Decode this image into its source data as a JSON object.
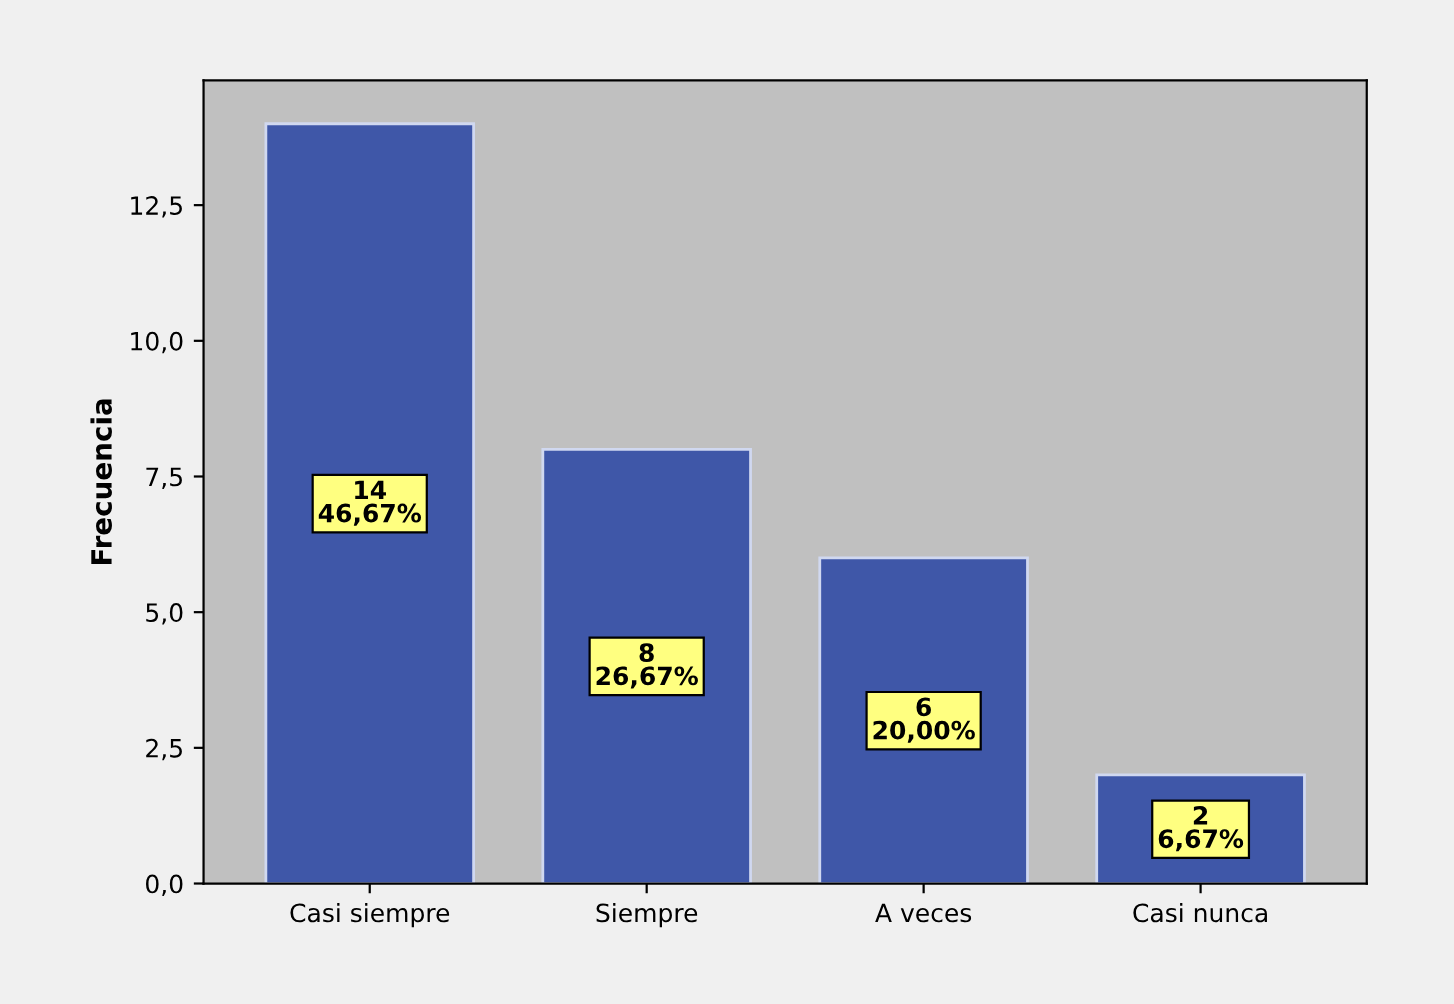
{
  "chart_data": {
    "type": "bar",
    "ylabel": "Frecuencia",
    "categories": [
      "Casi siempre",
      "Siempre",
      "A veces",
      "Casi nunca"
    ],
    "values": [
      14,
      8,
      6,
      2
    ],
    "color": "#3f57a8",
    "value_labels": [
      "14\n46,67%",
      "8\n26,67%",
      "6\n20,00%",
      "2\n6,67%"
    ],
    "ylim": [
      0,
      14.8
    ],
    "yticks": [
      {
        "value": 0,
        "label": "0,0"
      },
      {
        "value": 2.5,
        "label": "2,5"
      },
      {
        "value": 5,
        "label": "5,0"
      },
      {
        "value": 7.5,
        "label": "7,5"
      },
      {
        "value": 10,
        "label": "10,0"
      },
      {
        "value": 12.5,
        "label": "12,5"
      }
    ],
    "grid": false,
    "legend": false
  }
}
